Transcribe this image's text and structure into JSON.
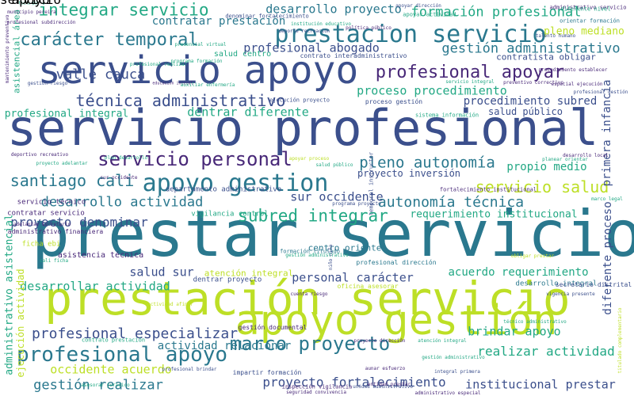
{
  "palette": {
    "navy": "#3b4f8c",
    "teal": "#2a788e",
    "green": "#22a884",
    "lime": "#bddf26",
    "yellow": "#e5e419",
    "purple": "#482878",
    "dark": "#440154"
  },
  "words": [
    {
      "text": "servicio profesional",
      "color": "#3b4f8c",
      "rotated": false
    },
    {
      "text": "prestar servicio",
      "color": "#2a788e",
      "rotated": false
    },
    {
      "text": "prestación servicio",
      "color": "#bddf26",
      "rotated": false
    },
    {
      "text": "servicio apoyo",
      "color": "#3b4f8c",
      "rotated": false
    },
    {
      "text": "apoyo gestión",
      "color": "#bddf26",
      "rotated": false
    },
    {
      "text": "prestacion servicio",
      "color": "#2a788e",
      "rotated": false
    },
    {
      "text": "profesional apoyo",
      "color": "#2a788e",
      "rotated": false
    },
    {
      "text": "apoyo gestion",
      "color": "#2a788e",
      "rotated": false
    },
    {
      "text": "servicio personal",
      "color": "#482878",
      "rotated": false
    },
    {
      "text": "carácter temporal",
      "color": "#2a788e",
      "rotated": false
    },
    {
      "text": "integrar servicio",
      "color": "#22a884",
      "rotated": false
    },
    {
      "text": "profesional apoyar",
      "color": "#482878",
      "rotated": false
    },
    {
      "text": "técnica administrativo",
      "color": "#3b4f8c",
      "rotated": false
    },
    {
      "text": "marco proyecto",
      "color": "#2a788e",
      "rotated": false
    },
    {
      "text": "servicio salud",
      "color": "#bddf26",
      "rotated": false
    },
    {
      "text": "subred integrar",
      "color": "#22a884",
      "rotated": false
    },
    {
      "text": "pleno autonomía",
      "color": "#2a788e",
      "rotated": false
    },
    {
      "text": "autonomía técnica",
      "color": "#2a788e",
      "rotated": false
    },
    {
      "text": "santiago cali",
      "color": "#2a788e",
      "rotated": false
    },
    {
      "text": "gestión administrativo",
      "color": "#2a788e",
      "rotated": false
    },
    {
      "text": "formación profesional",
      "color": "#22a884",
      "rotated": false
    },
    {
      "text": "desarrollo proyecto",
      "color": "#2a788e",
      "rotated": false
    },
    {
      "text": "valle cauca",
      "color": "#3b4f8c",
      "rotated": false
    },
    {
      "text": "profesional especializar",
      "color": "#3b4f8c",
      "rotated": false
    },
    {
      "text": "desarrollo actividad",
      "color": "#2a788e",
      "rotated": false
    },
    {
      "text": "proyecto denominar",
      "color": "#3b4f8c",
      "rotated": false
    },
    {
      "text": "realizar actividad",
      "color": "#22a884",
      "rotated": false
    },
    {
      "text": "gestión realizar",
      "color": "#2a788e",
      "rotated": false
    },
    {
      "text": "proyecto fortalecimiento",
      "color": "#3b4f8c",
      "rotated": false
    },
    {
      "text": "institucional prestar",
      "color": "#3b4f8c",
      "rotated": false
    },
    {
      "text": "brindar apoyo",
      "color": "#22a884",
      "rotated": false
    },
    {
      "text": "proceso procedimiento",
      "color": "#22a884",
      "rotated": false
    },
    {
      "text": "procedimiento subred",
      "color": "#3b4f8c",
      "rotated": false
    },
    {
      "text": "dentrar diferente",
      "color": "#22a884",
      "rotated": false
    },
    {
      "text": "profesional integral",
      "color": "#22a884",
      "rotated": false
    },
    {
      "text": "personal carácter",
      "color": "#3b4f8c",
      "rotated": false
    },
    {
      "text": "acuerdo requerimiento",
      "color": "#22a884",
      "rotated": false
    },
    {
      "text": "requerimiento institucional",
      "color": "#22a884",
      "rotated": false
    },
    {
      "text": "sur occidente",
      "color": "#3b4f8c",
      "rotated": false
    },
    {
      "text": "salud sur",
      "color": "#3b4f8c",
      "rotated": false
    },
    {
      "text": "desarrollar actividad",
      "color": "#22a884",
      "rotated": false
    },
    {
      "text": "actividad relacionar",
      "color": "#2a788e",
      "rotated": false
    },
    {
      "text": "occidente acuerdo",
      "color": "#bddf26",
      "rotated": false
    },
    {
      "text": "profesional abogado",
      "color": "#3b4f8c",
      "rotated": false
    },
    {
      "text": "contratar prestación",
      "color": "#2a788e",
      "rotated": false
    },
    {
      "text": "propio medio",
      "color": "#22a884",
      "rotated": false
    },
    {
      "text": "pleno mediano",
      "color": "#bddf26",
      "rotated": false
    },
    {
      "text": "salud público",
      "color": "#3b4f8c",
      "rotated": false
    },
    {
      "text": "proyecto inversión",
      "color": "#3b4f8c",
      "rotated": false
    },
    {
      "text": "primera infancia",
      "color": "#3b4f8c",
      "rotated": true
    },
    {
      "text": "diferente proceso",
      "color": "#3b4f8c",
      "rotated": true
    },
    {
      "text": "administrativo asistencial",
      "color": "#22a884",
      "rotated": true
    },
    {
      "text": "ejecución actividad",
      "color": "#bddf26",
      "rotated": true
    },
    {
      "text": "asistencial área",
      "color": "#22a884",
      "rotated": true
    },
    {
      "text": "atención integral",
      "color": "#bddf26",
      "rotated": false
    },
    {
      "text": "centro oriente",
      "color": "#2a788e",
      "rotated": false
    },
    {
      "text": "dentrar proyecto",
      "color": "#3b4f8c",
      "rotated": false
    },
    {
      "text": "desarrollo integral",
      "color": "#2a788e",
      "rotated": false
    },
    {
      "text": "asistencia técnica",
      "color": "#482878",
      "rotated": false
    },
    {
      "text": "departamento administrativo",
      "color": "#3b4f8c",
      "rotated": false
    },
    {
      "text": "contratista obligar",
      "color": "#3b4f8c",
      "rotated": false
    },
    {
      "text": "salud centro",
      "color": "#22a884",
      "rotated": false
    },
    {
      "text": "vigilancia control",
      "color": "#22a884",
      "rotated": false
    },
    {
      "text": "servicio técnico",
      "color": "#482878",
      "rotated": false
    },
    {
      "text": "contratar servicio",
      "color": "#482878",
      "rotated": false
    },
    {
      "text": "ficha ebi",
      "color": "#bddf26",
      "rotated": false
    },
    {
      "text": "administrativo financiera",
      "color": "#482878",
      "rotated": false
    },
    {
      "text": "oficina asesorar",
      "color": "#bddf26",
      "rotated": false
    },
    {
      "text": "impartir formación",
      "color": "#3b4f8c",
      "rotated": false
    },
    {
      "text": "gestión documental",
      "color": "#482878",
      "rotated": false
    },
    {
      "text": "fortalecimiento institucional",
      "color": "#482878",
      "rotated": false
    },
    {
      "text": "sistema información",
      "color": "#22a884",
      "rotated": false
    },
    {
      "text": "ejecución proyecto",
      "color": "#3b4f8c",
      "rotated": false
    },
    {
      "text": "proceso gestión",
      "color": "#3b4f8c",
      "rotated": false
    },
    {
      "text": "contrato interadministrativo",
      "color": "#3b4f8c",
      "rotated": false
    },
    {
      "text": "denominar fortalecimiento",
      "color": "#3b4f8c",
      "rotated": false
    },
    {
      "text": "administrativo servicio",
      "color": "#482878",
      "rotated": false
    },
    {
      "text": "orientar formación",
      "color": "#2a788e",
      "rotated": false
    },
    {
      "text": "apoyar actividad",
      "color": "#22a884",
      "rotated": false
    },
    {
      "text": "profesional realizar",
      "color": "#22a884",
      "rotated": false
    },
    {
      "text": "secretario distrital",
      "color": "#3b4f8c",
      "rotated": false
    },
    {
      "text": "temporal instructor",
      "color": "#3b4f8c",
      "rotated": true
    },
    {
      "text": "programa proyecto",
      "color": "#3b4f8c",
      "rotated": false
    },
    {
      "text": "formación titulado",
      "color": "#2a788e",
      "rotated": false
    },
    {
      "text": "profesional dirección",
      "color": "#2a788e",
      "rotated": false
    },
    {
      "text": "sur occidente",
      "color": "#482878",
      "rotated": false
    },
    {
      "text": "plan desarrollo",
      "color": "#22a884",
      "rotated": false
    },
    {
      "text": "proyecto adelantar",
      "color": "#22a884",
      "rotated": false
    },
    {
      "text": "deportivo recreativo",
      "color": "#482878",
      "rotated": false
    },
    {
      "text": "gestión riesgo",
      "color": "#3b4f8c",
      "rotated": false
    },
    {
      "text": "educación inicial",
      "color": "#482878",
      "rotated": false
    },
    {
      "text": "talento humano",
      "color": "#3b4f8c",
      "rotated": false
    },
    {
      "text": "preventivo correctivo",
      "color": "#482878",
      "rotated": false
    },
    {
      "text": "auxiliar enfermería",
      "color": "#22a884",
      "rotated": false
    },
    {
      "text": "institución educativo",
      "color": "#22a884",
      "rotated": false
    },
    {
      "text": "profesional subdirección",
      "color": "#482878",
      "rotated": false
    },
    {
      "text": "inspección vigilancia",
      "color": "#482878",
      "rotated": false
    },
    {
      "text": "unidad administrativo",
      "color": "#3b4f8c",
      "rotated": false
    },
    {
      "text": "aunar esfuerzo",
      "color": "#482878",
      "rotated": false
    },
    {
      "text": "contrato prestación",
      "color": "#22a884",
      "rotated": false
    },
    {
      "text": "asesorar jurídico",
      "color": "#22a884",
      "rotated": false
    },
    {
      "text": "mantenimiento preventivo",
      "color": "#482878",
      "rotated": true
    },
    {
      "text": "municipio pereira",
      "color": "#482878",
      "rotated": false
    },
    {
      "text": "ficha pu",
      "color": "#22a884",
      "rotated": false
    },
    {
      "text": "servicio integral",
      "color": "#22a884",
      "rotated": false
    },
    {
      "text": "procedimiento establecer",
      "color": "#482878",
      "rotated": false
    },
    {
      "text": "titulado complementario",
      "color": "#bddf26",
      "rotated": true
    },
    {
      "text": "especial ejecución",
      "color": "#482878",
      "rotated": false
    },
    {
      "text": "marco legal",
      "color": "#22a884",
      "rotated": false
    },
    {
      "text": "desarrollo local",
      "color": "#482878",
      "rotated": false
    },
    {
      "text": "deporte recreación",
      "color": "#3b4f8c",
      "rotated": false
    },
    {
      "text": "presencial virtual",
      "color": "#22a884",
      "rotated": false
    },
    {
      "text": "programa formación",
      "color": "#22a884",
      "rotated": false
    },
    {
      "text": "diferente nivel",
      "color": "#22a884",
      "rotated": false
    },
    {
      "text": "apoyar dirección",
      "color": "#3b4f8c",
      "rotated": false
    },
    {
      "text": "profesional gestión",
      "color": "#3b4f8c",
      "rotated": false
    },
    {
      "text": "política público",
      "color": "#482878",
      "rotated": false
    },
    {
      "text": "planear orientar",
      "color": "#22a884",
      "rotated": false
    },
    {
      "text": "salud público",
      "color": "#22a884",
      "rotated": false
    },
    {
      "text": "apoyar proceso",
      "color": "#bddf26",
      "rotated": false
    },
    {
      "text": "cali ficha",
      "color": "#22a884",
      "rotated": false
    },
    {
      "text": "obligar prestar",
      "color": "#bddf26",
      "rotated": false
    },
    {
      "text": "niño niña",
      "color": "#3b4f8c",
      "rotated": true
    },
    {
      "text": "gestión administrativo",
      "color": "#22a884",
      "rotated": false
    },
    {
      "text": "adelantar secretario",
      "color": "#482878",
      "rotated": false
    },
    {
      "text": "profesional brindar",
      "color": "#3b4f8c",
      "rotated": false
    },
    {
      "text": "atención integral",
      "color": "#22a884",
      "rotated": false
    },
    {
      "text": "técnico administrativo",
      "color": "#22a884",
      "rotated": false
    },
    {
      "text": "cuenta riesgo",
      "color": "#482878",
      "rotated": false
    },
    {
      "text": "vigencia presente",
      "color": "#3b4f8c",
      "rotated": false
    },
    {
      "text": "actividad afinar",
      "color": "#bddf26",
      "rotated": false
    },
    {
      "text": "seguridad convivencia",
      "color": "#482878",
      "rotated": false
    },
    {
      "text": "proyecto dirección",
      "color": "#482878",
      "rotated": false
    },
    {
      "text": "entidad prestar",
      "color": "#482878",
      "rotated": false
    },
    {
      "text": "integral primera",
      "color": "#3b4f8c",
      "rotated": false
    },
    {
      "text": "gestión administrativo",
      "color": "#22a884",
      "rotated": false
    },
    {
      "text": "administrativo especial",
      "color": "#482878",
      "rotated": false
    },
    {
      "text": "prestar apoyo",
      "color": "#482878",
      "rotated": false
    },
    {
      "text": "prestar servicio",
      "color": "#3b4f8c",
      "rotated": false
    }
  ]
}
